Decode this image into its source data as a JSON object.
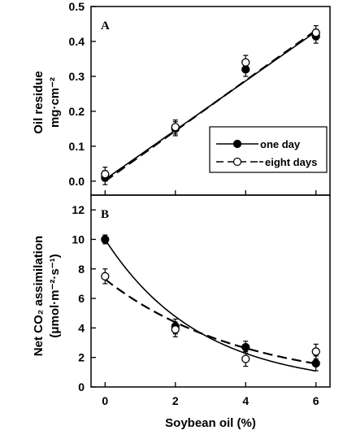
{
  "chart_data": [
    {
      "type": "line",
      "panel_label": "A",
      "xlabel": "",
      "ylabel_line1": "Oil residue",
      "ylabel_line2": "mg·cm⁻²",
      "xlim": [
        -0.4,
        6.4
      ],
      "ylim": [
        -0.04,
        0.5
      ],
      "yticks": [
        0.0,
        0.1,
        0.2,
        0.3,
        0.4,
        0.5
      ],
      "ytick_labels": [
        "0.0",
        "0.1",
        "0.2",
        "0.3",
        "0.4",
        "0.5"
      ],
      "xticks": [
        0,
        2,
        4,
        6
      ],
      "legend_position": "right-center",
      "series": [
        {
          "name": "one day",
          "marker": "filled-circle",
          "line": "solid",
          "x": [
            0,
            2,
            4,
            6
          ],
          "y": [
            0.01,
            0.15,
            0.32,
            0.415
          ],
          "err": [
            0.02,
            0.02,
            0.02,
            0.02
          ],
          "fit": {
            "kind": "linear",
            "slope": 0.0705,
            "intercept": 0.005
          }
        },
        {
          "name": "eight days",
          "marker": "open-circle",
          "line": "dashed",
          "x": [
            0,
            2,
            4,
            6
          ],
          "y": [
            0.02,
            0.155,
            0.34,
            0.425
          ],
          "err": [
            0.02,
            0.02,
            0.02,
            0.02
          ],
          "fit": {
            "kind": "linear",
            "slope": 0.072,
            "intercept": 0.0
          }
        }
      ]
    },
    {
      "type": "line",
      "panel_label": "B",
      "xlabel": "Soybean oil (%)",
      "ylabel_line1": "Net CO₂ assimilation",
      "ylabel_line2": "(μmol·m⁻²·s⁻¹)",
      "xlim": [
        -0.4,
        6.4
      ],
      "ylim": [
        0,
        13
      ],
      "yticks": [
        0,
        2,
        4,
        6,
        8,
        10,
        12
      ],
      "ytick_labels": [
        "0",
        "2",
        "4",
        "6",
        "8",
        "10",
        "12"
      ],
      "xticks": [
        0,
        2,
        4,
        6
      ],
      "xtick_labels": [
        "0",
        "2",
        "4",
        "6"
      ],
      "series": [
        {
          "name": "one day",
          "marker": "filled-circle",
          "line": "solid",
          "x": [
            0,
            2,
            4,
            6
          ],
          "y": [
            10.0,
            4.1,
            2.7,
            1.6
          ],
          "err": [
            0.3,
            0.5,
            0.4,
            0.5
          ],
          "fit": {
            "kind": "exp",
            "a": 10.0,
            "b": -0.37
          }
        },
        {
          "name": "eight days",
          "marker": "open-circle",
          "line": "dashed",
          "x": [
            0,
            2,
            4,
            6
          ],
          "y": [
            7.5,
            3.9,
            1.9,
            2.4
          ],
          "err": [
            0.5,
            0.5,
            0.5,
            0.5
          ],
          "fit": {
            "kind": "exp",
            "a": 7.3,
            "b": -0.255
          }
        }
      ]
    }
  ]
}
